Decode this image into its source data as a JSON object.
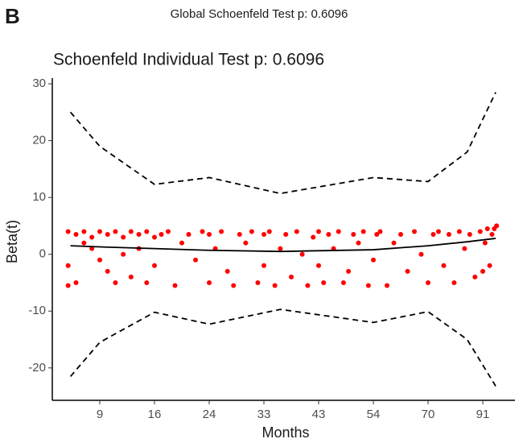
{
  "chart_data": {
    "type": "scatter",
    "panel_label": "B",
    "subtitle": "Global Schoenfeld Test p: 0.6096",
    "title": "Schoenfeld Individual Test p: 0.6096",
    "xlabel": "Months",
    "ylabel": "Beta(t)",
    "xlim": [
      3,
      105
    ],
    "xticks": [
      9,
      16,
      24,
      33,
      43,
      54,
      70,
      91
    ],
    "ylim": [
      -25.7,
      31
    ],
    "yticks": [
      -20,
      -10,
      0,
      10,
      20,
      30
    ],
    "points": {
      "color": "#ff0000",
      "x": [
        5,
        5,
        5,
        6,
        6,
        7,
        7,
        8,
        8,
        9,
        9,
        10,
        10,
        11,
        11,
        12,
        12,
        13,
        13,
        14,
        14,
        15,
        15,
        16,
        16,
        17,
        18,
        19,
        20,
        21,
        22,
        23,
        24,
        24,
        25,
        26,
        27,
        28,
        29,
        30,
        31,
        32,
        33,
        33,
        34,
        35,
        36,
        37,
        38,
        39,
        40,
        41,
        42,
        43,
        43,
        44,
        45,
        46,
        47,
        48,
        49,
        50,
        51,
        52,
        53,
        54,
        55,
        56,
        58,
        60,
        62,
        64,
        66,
        68,
        70,
        72,
        74,
        76,
        78,
        80,
        82,
        84,
        86,
        88,
        90,
        91,
        92,
        93,
        94,
        95,
        96,
        97
      ],
      "y": [
        4,
        -2,
        -5.5,
        3.5,
        -5,
        4,
        2,
        1,
        3,
        4,
        -1,
        3.5,
        -3,
        4,
        -5,
        3,
        0,
        4,
        -4,
        3.5,
        1,
        -5,
        4,
        3,
        -2,
        3.5,
        4,
        -5.5,
        2,
        3.5,
        -1,
        4,
        -5,
        3.5,
        1,
        4,
        -3,
        -5.5,
        3.5,
        2,
        4,
        -5,
        3.5,
        -2,
        4,
        -5.5,
        1,
        3.5,
        -4,
        4,
        0,
        -5.5,
        3,
        4,
        -2,
        -5,
        3.5,
        1,
        4,
        -5,
        -3,
        3.5,
        2,
        4,
        -5.5,
        -1,
        3.5,
        4,
        -5.5,
        2,
        3.5,
        -3,
        4,
        0,
        -5,
        3.5,
        4,
        -2,
        3.5,
        -5,
        4,
        1,
        3.5,
        -4,
        4,
        -3,
        2,
        4.5,
        -2,
        3.5,
        4.5,
        5
      ]
    },
    "lines": [
      {
        "style": "dashed",
        "color": "#000000",
        "x": [
          5.3,
          9,
          16,
          24,
          36,
          54,
          70,
          85,
          96.6
        ],
        "y": [
          25,
          19,
          12.3,
          13.5,
          10.7,
          13.5,
          12.8,
          18,
          28.5
        ]
      },
      {
        "style": "solid",
        "color": "#000000",
        "x": [
          5.3,
          9,
          16,
          24,
          36,
          54,
          70,
          85,
          96.6
        ],
        "y": [
          1.5,
          1.3,
          1,
          0.7,
          0.5,
          0.8,
          1.5,
          2.2,
          2.8
        ]
      },
      {
        "style": "dashed",
        "color": "#000000",
        "x": [
          5.3,
          9,
          16,
          24,
          36,
          54,
          70,
          85,
          96.6
        ],
        "y": [
          -21.5,
          -15.5,
          -10.2,
          -12.3,
          -9.7,
          -12,
          -10.1,
          -15,
          -23.2
        ]
      }
    ]
  }
}
